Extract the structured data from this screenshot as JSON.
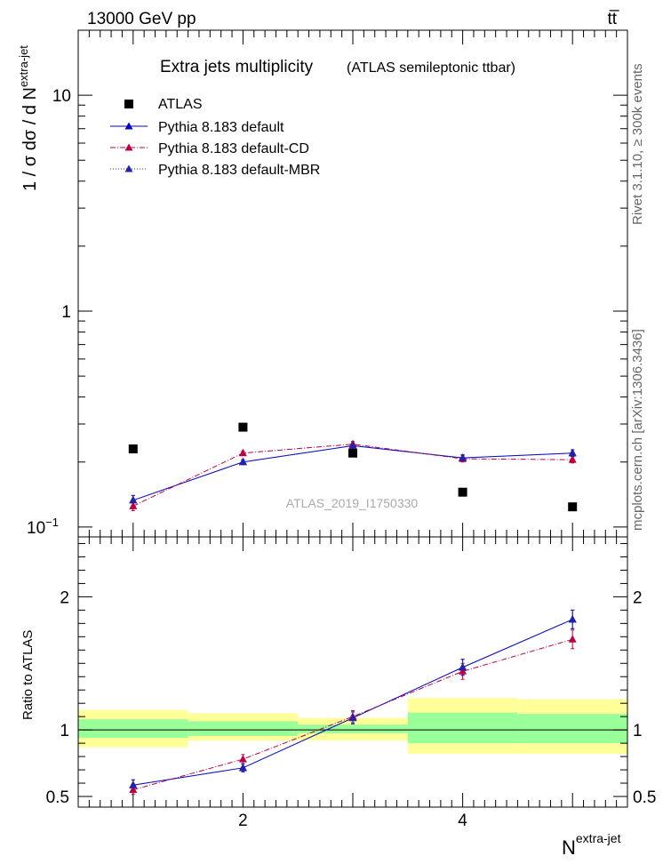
{
  "header": {
    "left": "13000 GeV pp",
    "right": "tt̅"
  },
  "side_labels": {
    "rivet": "Rivet 3.1.10, ≥ 300k events",
    "mcplots": "mcplots.cern.ch [arXiv:1306.3436]"
  },
  "chart_data": [
    {
      "type": "scatter",
      "title": "Extra jets multiplicity",
      "subtitle": "(ATLAS semileptonic ttbar)",
      "watermark": "ATLAS_2019_I1750330",
      "xlabel": "N",
      "xlabel_sup": "extra-jet",
      "ylabel": "1 / σ dσ / d N",
      "ylabel_sup": "extra-jet",
      "yscale": "log",
      "xlim": [
        0.5,
        5.5
      ],
      "ylim": [
        0.09,
        20
      ],
      "y_ticks": [
        {
          "v": 0.1,
          "base": "10",
          "exp": "−1"
        },
        {
          "v": 1,
          "base": "1",
          "exp": ""
        },
        {
          "v": 10,
          "base": "10",
          "exp": ""
        }
      ],
      "legend_position": "top-left",
      "series": [
        {
          "name": "ATLAS",
          "marker": "square",
          "color": "#000000",
          "x": [
            1,
            2,
            3,
            4,
            5
          ],
          "y": [
            0.23,
            0.29,
            0.22,
            0.145,
            0.124
          ]
        },
        {
          "name": "Pythia 8.183 default",
          "marker": "triangle",
          "color": "#0000cc",
          "line": "solid",
          "x": [
            1,
            2,
            3,
            4,
            5
          ],
          "y": [
            0.133,
            0.2,
            0.238,
            0.209,
            0.22
          ],
          "err": [
            0.007,
            0.005,
            0.007,
            0.007,
            0.008
          ]
        },
        {
          "name": "Pythia 8.183 default-CD",
          "marker": "triangle",
          "color": "#bb0044",
          "line": "dashdot",
          "x": [
            1,
            2,
            3,
            4,
            5
          ],
          "y": [
            0.125,
            0.22,
            0.242,
            0.207,
            0.205
          ],
          "err": [
            0.006,
            0.005,
            0.007,
            0.007,
            0.007
          ]
        },
        {
          "name": "Pythia 8.183 default-MBR",
          "marker": "triangle",
          "color": "#2222aa",
          "line": "dotted",
          "x": [
            1,
            2,
            3,
            4,
            5
          ],
          "y": [
            0.133,
            0.2,
            0.238,
            0.209,
            0.22
          ],
          "err": [
            0.007,
            0.005,
            0.007,
            0.007,
            0.008
          ]
        }
      ]
    },
    {
      "type": "scatter",
      "ylabel": "Ratio to ATLAS",
      "xlabel": "N",
      "xlabel_sup": "extra-jet",
      "xlim": [
        0.5,
        5.5
      ],
      "ylim": [
        0.42,
        2.45
      ],
      "x_ticks": [
        2,
        4
      ],
      "y_ticks": [
        {
          "v": 0.5,
          "label": "0.5"
        },
        {
          "v": 1,
          "label": "1"
        },
        {
          "v": 2,
          "label": "2"
        }
      ],
      "bands": [
        {
          "x0": 0.5,
          "x1": 1.5,
          "inner": [
            0.94,
            1.08
          ],
          "outer": [
            0.87,
            1.15
          ]
        },
        {
          "x0": 1.5,
          "x1": 2.5,
          "inner": [
            0.955,
            1.065
          ],
          "outer": [
            0.92,
            1.125
          ]
        },
        {
          "x0": 2.5,
          "x1": 3.5,
          "inner": [
            0.975,
            1.04
          ],
          "outer": [
            0.92,
            1.09
          ]
        },
        {
          "x0": 3.5,
          "x1": 4.5,
          "inner": [
            0.9,
            1.13
          ],
          "outer": [
            0.82,
            1.24
          ]
        },
        {
          "x0": 4.5,
          "x1": 5.5,
          "inner": [
            0.9,
            1.12
          ],
          "outer": [
            0.82,
            1.23
          ]
        }
      ],
      "series": [
        {
          "name": "Pythia 8.183 default",
          "color": "#0000cc",
          "line": "solid",
          "x": [
            1,
            2,
            3,
            4,
            5
          ],
          "y": [
            0.585,
            0.715,
            1.09,
            1.47,
            1.83
          ],
          "err": [
            0.04,
            0.03,
            0.045,
            0.06,
            0.07
          ]
        },
        {
          "name": "Pythia 8.183 default-CD",
          "color": "#bb0044",
          "line": "dashdot",
          "x": [
            1,
            2,
            3,
            4,
            5
          ],
          "y": [
            0.55,
            0.78,
            1.1,
            1.44,
            1.68
          ],
          "err": [
            0.035,
            0.035,
            0.045,
            0.06,
            0.07
          ]
        },
        {
          "name": "Pythia 8.183 default-MBR",
          "color": "#2222aa",
          "line": "dotted",
          "x": [
            1,
            2,
            3,
            4,
            5
          ],
          "y": [
            0.585,
            0.715,
            1.09,
            1.47,
            1.83
          ],
          "err": [
            0.04,
            0.03,
            0.045,
            0.06,
            0.07
          ]
        }
      ]
    }
  ]
}
